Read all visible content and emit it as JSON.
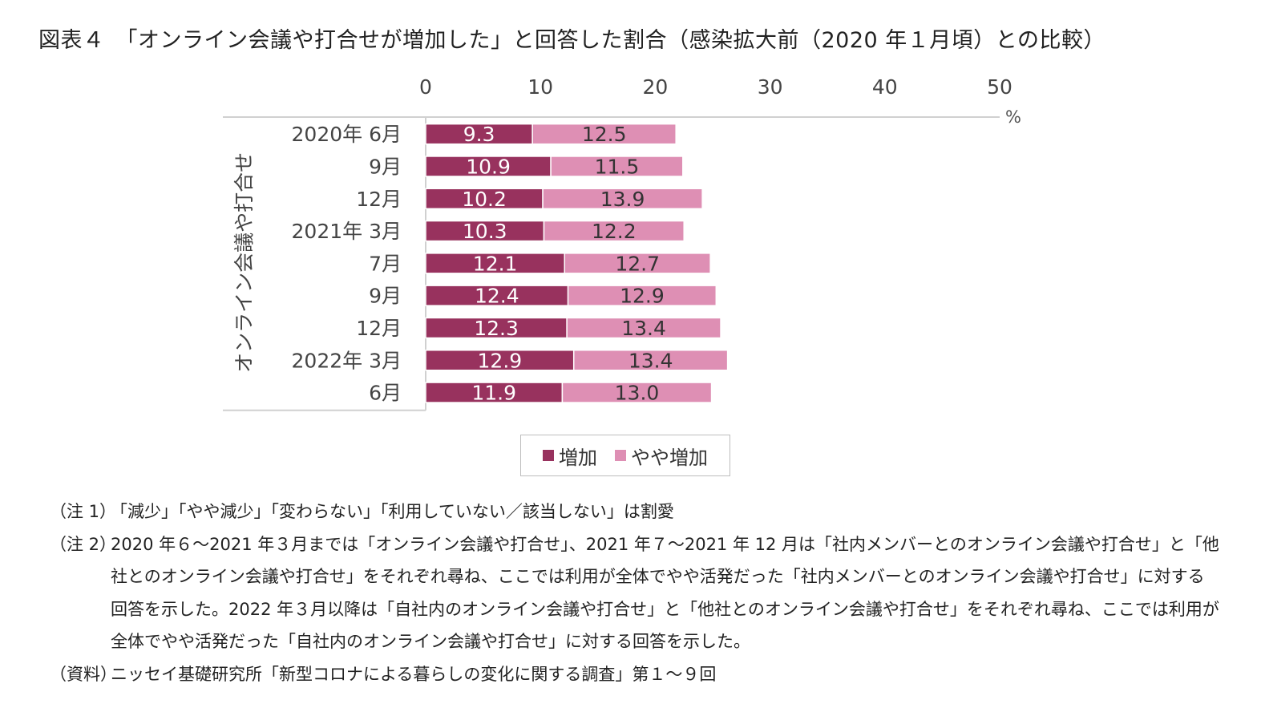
{
  "title": "図表４　「オンライン会議や打合せが増加した」と回答した割合（感染拡大前（2020 年１月頃）との比較）",
  "chart_data": {
    "type": "bar",
    "orientation": "horizontal",
    "stacked": true,
    "categories": [
      "2020年 6月",
      "9月",
      "12月",
      "2021年 3月",
      "7月",
      "9月",
      "12月",
      "2022年 3月",
      "6月"
    ],
    "series": [
      {
        "name": "増加",
        "values": [
          9.3,
          10.9,
          10.2,
          10.3,
          12.1,
          12.4,
          12.3,
          12.9,
          11.9
        ],
        "color": "#98325e"
      },
      {
        "name": "やや増加",
        "values": [
          12.5,
          11.5,
          13.9,
          12.2,
          12.7,
          12.9,
          13.4,
          13.4,
          13.0
        ],
        "color": "#de8fb4"
      }
    ],
    "xlim": [
      0,
      50
    ],
    "xticks": [
      "0",
      "10",
      "20",
      "30",
      "40",
      "50"
    ],
    "xunit": "%",
    "ylabel": "オンライン会議や打合せ",
    "legend_position": "bottom"
  },
  "notes": [
    {
      "label": "（注 1）",
      "text": "「減少」「やや減少」「変わらない」「利用していない／該当しない」は割愛"
    },
    {
      "label": "（注 2）",
      "text": "2020 年６～2021 年３月までは「オンライン会議や打合せ」、2021 年７～2021 年 12 月は「社内メンバーとのオンライン会議や打合せ」と「他社とのオンライン会議や打合せ」をそれぞれ尋ね、ここでは利用が全体でやや活発だった「社内メンバーとのオンライン会議や打合せ」に対する回答を示した。2022 年３月以降は「自社内のオンライン会議や打合せ」と「他社とのオンライン会議や打合せ」をそれぞれ尋ね、ここでは利用が全体でやや活発だった「自社内のオンライン会議や打合せ」に対する回答を示した。"
    },
    {
      "label": "（資料）",
      "text": "ニッセイ基礎研究所「新型コロナによる暮らしの変化に関する調査」第１～９回"
    }
  ]
}
